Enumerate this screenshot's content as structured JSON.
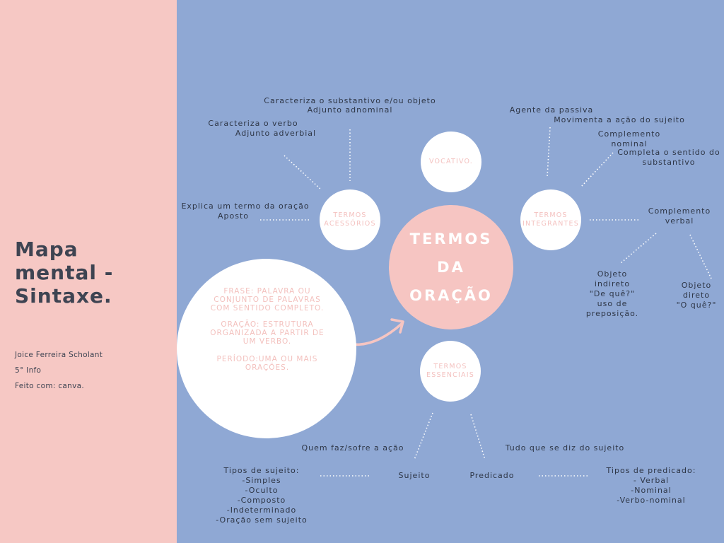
{
  "sidebar": {
    "title_lines": [
      "Mapa",
      "mental -",
      "Sintaxe."
    ],
    "author": "Joice Ferreira Scholant",
    "class_name": "5° Info",
    "made_with": "Feito com: canva."
  },
  "center": {
    "lines": [
      "TERMOS",
      "DA",
      "ORAÇÃO"
    ]
  },
  "circles": {
    "vocativo": "VOCATIVO.",
    "acessorios": [
      "TERMOS",
      "ACESSÓRIOS"
    ],
    "integrantes": [
      "TERMOS",
      "INTEGRANTES"
    ],
    "essenciais": [
      "TERMOS",
      "ESSENCIAIS"
    ]
  },
  "definitions": {
    "frase": [
      "FRASE: PALAVRA OU",
      "CONJUNTO DE PALAVRAS",
      "COM SENTIDO COMPLETO."
    ],
    "oracao": [
      "ORAÇÃO: ESTRUTURA",
      "ORGANIZADA A PARTIR DE",
      "UM VERBO."
    ],
    "periodo": [
      "PERÍODO:UMA OU MAIS",
      "ORAÇÕES."
    ]
  },
  "acessorios_branch": {
    "adnominal_desc": "Caracteriza o substantivo e/ou objeto",
    "adnominal": "Adjunto adnominal",
    "adverbial_desc": "Caracteriza o verbo",
    "adverbial": "Adjunto adverbial",
    "aposto_desc": "Explica um termo da oração",
    "aposto": "Aposto"
  },
  "integrantes_branch": {
    "agente": "Agente da passiva",
    "agente_desc": "Movimenta a ação do sujeito",
    "nominal": [
      "Complemento",
      "nominal"
    ],
    "nominal_desc": [
      "Completa o sentido do",
      "substantivo"
    ],
    "verbal": [
      "Complemento",
      "verbal"
    ],
    "indireto": [
      "Objeto",
      "indireto",
      "\"De quê?\"",
      "uso de",
      "preposição."
    ],
    "direto": [
      "Objeto",
      "direto",
      "\"O quê?\""
    ]
  },
  "essenciais_branch": {
    "sujeito_desc": "Quem faz/sofre a ação",
    "sujeito": "Sujeito",
    "tipos_sujeito": [
      "Tipos de sujeito:",
      "-Simples",
      "-Oculto",
      "-Composto",
      "-Indeterminado",
      "-Oração sem sujeito"
    ],
    "predicado_desc": "Tudo que se diz do sujeito",
    "predicado": "Predicado",
    "tipos_predicado": [
      "Tipos de predicado:",
      "- Verbal",
      "-Nominal",
      "-Verbo-nominal"
    ]
  }
}
